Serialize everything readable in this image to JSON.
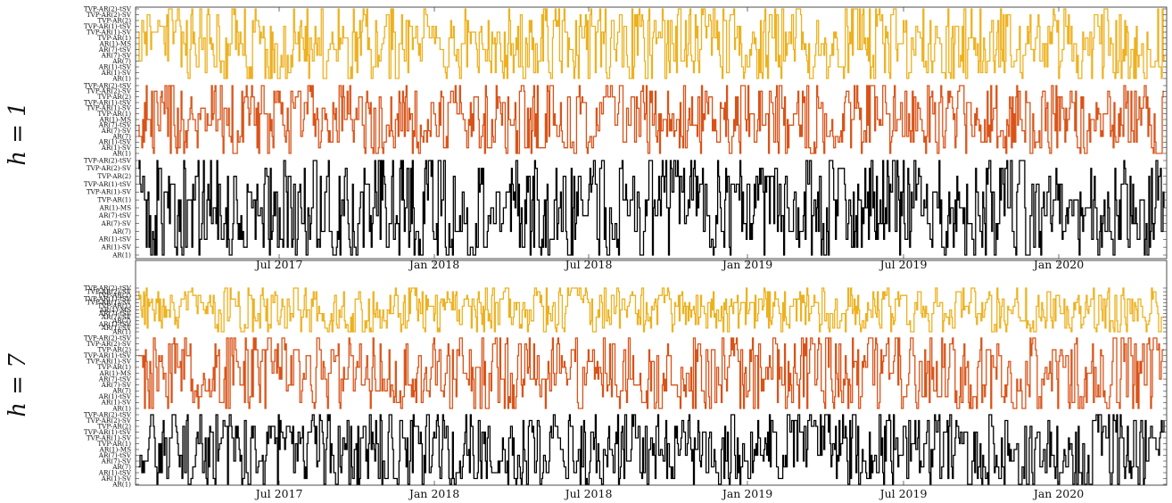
{
  "chart_data": [
    {
      "type": "line",
      "panel_label": "h = 1",
      "x_tick_labels": [
        "Jul 2017",
        "Jan 2018",
        "Jul 2018",
        "Jan 2019",
        "Jul 2019",
        "Jan 2020"
      ],
      "y_categories": [
        "TVP-AR(2)-tSV",
        "TVP-AR(2)-SV",
        "TVP-AR(2)",
        "TVP-AR(1)-tSV",
        "TVP-AR(1)-SV",
        "TVP-AR(1)",
        "AR(1)-MS",
        "AR(7)-tSV",
        "AR(7)-SV",
        "AR(7)",
        "AR(1)-tSV",
        "AR(1)-SV",
        "AR(1)"
      ],
      "series": [
        {
          "color": "#EDB120",
          "seed": 11
        },
        {
          "color": "#D95319",
          "seed": 23
        },
        {
          "color": "#000000",
          "seed": 37
        }
      ],
      "grid": false
    },
    {
      "type": "line",
      "panel_label": "h = 7",
      "x_tick_labels": [
        "Jul 2017",
        "Jan 2018",
        "Jul 2018",
        "Jan 2019",
        "Jul 2019",
        "Jan 2020"
      ],
      "y_categories": [
        "TVP-AR(2)-tSV",
        "TVP-AR(2)-SV",
        "TVP-AR(2)",
        "TVP-AR(1)-tSV",
        "TVP-AR(1)-SV",
        "TVP-AR(1)",
        "AR(1)-MS",
        "AR(7)-tSV",
        "AR(7)-SV",
        "AR(7)",
        "AR(1)-tSV",
        "AR(1)-SV",
        "AR(1)"
      ],
      "series": [
        {
          "color": "#EDB120",
          "seed": 53
        },
        {
          "color": "#D95319",
          "seed": 71
        },
        {
          "color": "#000000",
          "seed": 89
        }
      ],
      "grid": false
    }
  ]
}
